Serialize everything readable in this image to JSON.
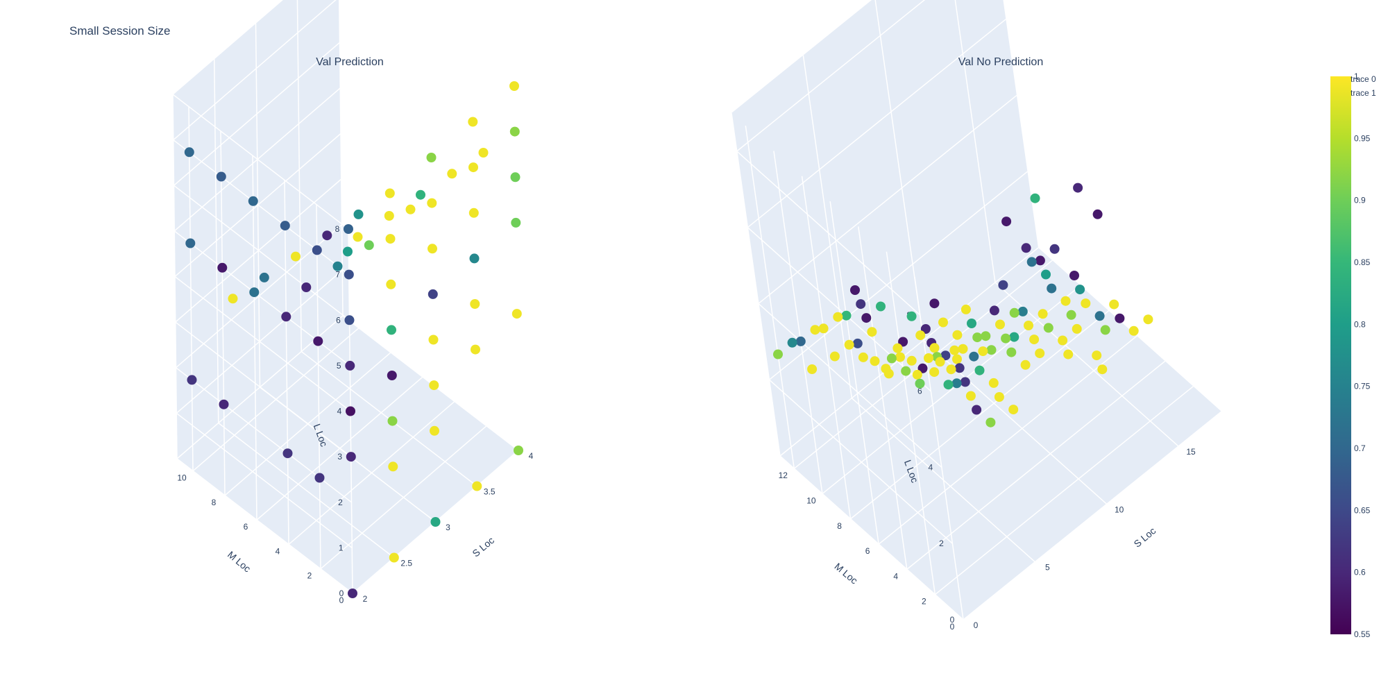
{
  "figure": {
    "title": "Small Session Size"
  },
  "legend": {
    "items": [
      "trace 0",
      "trace 1"
    ]
  },
  "colorbar": {
    "colorscale": "Viridis",
    "colors": [
      "#440154",
      "#482878",
      "#3e4989",
      "#31688e",
      "#26828e",
      "#1f9e89",
      "#35b779",
      "#6ece58",
      "#b5de2b",
      "#fde725"
    ],
    "range": [
      0.55,
      1
    ],
    "tick_labels": [
      "0.55",
      "0.6",
      "0.65",
      "0.7",
      "0.75",
      "0.8",
      "0.85",
      "0.9",
      "0.95",
      "1"
    ]
  },
  "chart_data": [
    {
      "type": "scatter3d",
      "title": "Val Prediction",
      "axes": {
        "x": {
          "label": "S Loc",
          "range": [
            2,
            4
          ],
          "tick_labels": [
            "2",
            "2.5",
            "3",
            "3.5",
            "4"
          ]
        },
        "y": {
          "label": "M Loc",
          "range": [
            0,
            11
          ],
          "tick_labels": [
            "0",
            "2",
            "4",
            "6",
            "8",
            "10"
          ]
        },
        "z": {
          "label": "L Loc",
          "range": [
            0,
            8
          ],
          "tick_labels": [
            "0",
            "1",
            "2",
            "3",
            "4",
            "5",
            "6",
            "7",
            "8"
          ]
        }
      },
      "points": [
        {
          "x": 2,
          "y": 0,
          "z": 8,
          "v": 0.69
        },
        {
          "x": 2,
          "y": 0,
          "z": 7,
          "v": 0.66
        },
        {
          "x": 2,
          "y": 0,
          "z": 6,
          "v": 0.66
        },
        {
          "x": 2,
          "y": 0,
          "z": 5,
          "v": 0.6
        },
        {
          "x": 2,
          "y": 0,
          "z": 4,
          "v": 0.57
        },
        {
          "x": 2,
          "y": 0,
          "z": 3,
          "v": 0.6
        },
        {
          "x": 2,
          "y": 0,
          "z": 0,
          "v": 0.6
        },
        {
          "x": 2,
          "y": 2,
          "z": 7,
          "v": 0.66
        },
        {
          "x": 2,
          "y": 4,
          "z": 7,
          "v": 0.68
        },
        {
          "x": 2,
          "y": 6,
          "z": 7,
          "v": 0.7
        },
        {
          "x": 2,
          "y": 8,
          "z": 7,
          "v": 0.68
        },
        {
          "x": 2,
          "y": 10,
          "z": 7,
          "v": 0.7
        },
        {
          "x": 2,
          "y": 2,
          "z": 5,
          "v": 0.58
        },
        {
          "x": 2,
          "y": 4,
          "z": 5,
          "v": 0.6
        },
        {
          "x": 2,
          "y": 6,
          "z": 5,
          "v": 0.72
        },
        {
          "x": 2,
          "y": 8,
          "z": 5,
          "v": 0.58
        },
        {
          "x": 2,
          "y": 10,
          "z": 5,
          "v": 0.7
        },
        {
          "x": 2,
          "y": 2,
          "z": 2,
          "v": 0.62
        },
        {
          "x": 2,
          "y": 4,
          "z": 2,
          "v": 0.62
        },
        {
          "x": 2,
          "y": 8,
          "z": 2,
          "v": 0.6
        },
        {
          "x": 2,
          "y": 10,
          "z": 2,
          "v": 0.62
        },
        {
          "x": 2.5,
          "y": 0,
          "z": 8,
          "v": 0.99
        },
        {
          "x": 2.5,
          "y": 0,
          "z": 7,
          "v": 0.99
        },
        {
          "x": 2.5,
          "y": 0,
          "z": 6,
          "v": 0.99
        },
        {
          "x": 2.5,
          "y": 0,
          "z": 5,
          "v": 0.84
        },
        {
          "x": 2.5,
          "y": 0,
          "z": 4,
          "v": 0.58
        },
        {
          "x": 2.5,
          "y": 0,
          "z": 3,
          "v": 0.92
        },
        {
          "x": 2.5,
          "y": 0,
          "z": 2,
          "v": 0.99
        },
        {
          "x": 2.5,
          "y": 0,
          "z": 0,
          "v": 0.99
        },
        {
          "x": 2.5,
          "y": 2,
          "z": 7,
          "v": 0.78
        },
        {
          "x": 2.5,
          "y": 4,
          "z": 6,
          "v": 0.6
        },
        {
          "x": 2.5,
          "y": 6,
          "z": 5,
          "v": 0.99
        },
        {
          "x": 2.5,
          "y": 8,
          "z": 4,
          "v": 0.72
        },
        {
          "x": 2.5,
          "y": 10,
          "z": 3,
          "v": 0.99
        },
        {
          "x": 3,
          "y": 0,
          "z": 8,
          "v": 0.92
        },
        {
          "x": 3,
          "y": 0,
          "z": 7,
          "v": 0.99
        },
        {
          "x": 3,
          "y": 0,
          "z": 6,
          "v": 0.99
        },
        {
          "x": 3,
          "y": 0,
          "z": 5,
          "v": 0.64
        },
        {
          "x": 3,
          "y": 0,
          "z": 4,
          "v": 0.99
        },
        {
          "x": 3,
          "y": 0,
          "z": 3,
          "v": 0.99
        },
        {
          "x": 3,
          "y": 0,
          "z": 2,
          "v": 0.99
        },
        {
          "x": 3,
          "y": 0,
          "z": 0,
          "v": 0.82
        },
        {
          "x": 3,
          "y": 4,
          "z": 5,
          "v": 0.9
        },
        {
          "x": 3,
          "y": 6,
          "z": 4,
          "v": 0.75
        },
        {
          "x": 3,
          "y": 8,
          "z": 3,
          "v": 0.6
        },
        {
          "x": 3.5,
          "y": 0,
          "z": 8,
          "v": 0.99
        },
        {
          "x": 3.5,
          "y": 0,
          "z": 7,
          "v": 0.99
        },
        {
          "x": 3.5,
          "y": 0,
          "z": 6,
          "v": 0.99
        },
        {
          "x": 3.5,
          "y": 0,
          "z": 5,
          "v": 0.76
        },
        {
          "x": 3.5,
          "y": 0,
          "z": 4,
          "v": 0.99
        },
        {
          "x": 3.5,
          "y": 0,
          "z": 3,
          "v": 0.99
        },
        {
          "x": 3.5,
          "y": 0,
          "z": 0,
          "v": 0.99
        },
        {
          "x": 3.5,
          "y": 4,
          "z": 5,
          "v": 0.99
        },
        {
          "x": 3.5,
          "y": 8,
          "z": 3,
          "v": 0.8
        },
        {
          "x": 4,
          "y": 0,
          "z": 8,
          "v": 0.99
        },
        {
          "x": 4,
          "y": 0,
          "z": 7,
          "v": 0.92
        },
        {
          "x": 4,
          "y": 0,
          "z": 6,
          "v": 0.9
        },
        {
          "x": 4,
          "y": 0,
          "z": 5,
          "v": 0.9
        },
        {
          "x": 4,
          "y": 0,
          "z": 3,
          "v": 0.99
        },
        {
          "x": 4,
          "y": 0,
          "z": 0,
          "v": 0.92
        },
        {
          "x": 4,
          "y": 2,
          "z": 6,
          "v": 0.99
        },
        {
          "x": 4,
          "y": 4,
          "z": 5,
          "v": 0.99
        },
        {
          "x": 4,
          "y": 6,
          "z": 4,
          "v": 0.84
        },
        {
          "x": 4,
          "y": 8,
          "z": 3,
          "v": 0.99
        },
        {
          "x": 4,
          "y": 10,
          "z": 2,
          "v": 0.99
        }
      ]
    },
    {
      "type": "scatter3d",
      "title": "Val No Prediction",
      "axes": {
        "x": {
          "label": "S Loc",
          "range": [
            0,
            18
          ],
          "tick_labels": [
            "0",
            "5",
            "10",
            "15"
          ]
        },
        "y": {
          "label": "M Loc",
          "range": [
            0,
            13
          ],
          "tick_labels": [
            "0",
            "2",
            "4",
            "6",
            "8",
            "10",
            "12"
          ]
        },
        "z": {
          "label": "L Loc",
          "range": [
            0,
            9
          ],
          "tick_labels": [
            "0",
            "2",
            "4",
            "6",
            "8"
          ]
        }
      },
      "points": [
        {
          "x": 1,
          "y": 0,
          "z": 8,
          "v": 0.58
        },
        {
          "x": 1,
          "y": 1,
          "z": 7,
          "v": 0.6
        },
        {
          "x": 1,
          "y": 2,
          "z": 7,
          "v": 0.84
        },
        {
          "x": 1,
          "y": 3,
          "z": 6,
          "v": 0.58
        },
        {
          "x": 2,
          "y": 0,
          "z": 6,
          "v": 0.62
        },
        {
          "x": 2,
          "y": 1,
          "z": 6,
          "v": 0.64
        },
        {
          "x": 2,
          "y": 2,
          "z": 6,
          "v": 0.6
        },
        {
          "x": 2,
          "y": 3,
          "z": 5,
          "v": 0.58
        },
        {
          "x": 3,
          "y": 0,
          "z": 6,
          "v": 0.72
        },
        {
          "x": 3,
          "y": 1,
          "z": 5,
          "v": 0.62
        },
        {
          "x": 3,
          "y": 2,
          "z": 5,
          "v": 0.99
        },
        {
          "x": 3,
          "y": 3,
          "z": 5,
          "v": 0.92
        },
        {
          "x": 4,
          "y": 0,
          "z": 5,
          "v": 0.99
        },
        {
          "x": 4,
          "y": 1,
          "z": 5,
          "v": 0.84
        },
        {
          "x": 4,
          "y": 2,
          "z": 4,
          "v": 0.99
        },
        {
          "x": 4,
          "y": 3,
          "z": 4,
          "v": 0.74
        },
        {
          "x": 5,
          "y": 0,
          "z": 4,
          "v": 0.99
        },
        {
          "x": 5,
          "y": 1,
          "z": 4,
          "v": 0.99
        },
        {
          "x": 5,
          "y": 2,
          "z": 3,
          "v": 0.92
        },
        {
          "x": 5,
          "y": 3,
          "z": 3,
          "v": 0.6
        },
        {
          "x": 0,
          "y": 5,
          "z": 7,
          "v": 0.58
        },
        {
          "x": 0,
          "y": 6,
          "z": 6,
          "v": 0.85
        },
        {
          "x": 1,
          "y": 6,
          "z": 6,
          "v": 0.62
        },
        {
          "x": 2,
          "y": 7,
          "z": 5,
          "v": 0.58
        },
        {
          "x": 3,
          "y": 7,
          "z": 5,
          "v": 0.84
        },
        {
          "x": 0,
          "y": 8,
          "z": 5,
          "v": 0.99
        },
        {
          "x": 1,
          "y": 8,
          "z": 5,
          "v": 0.99
        },
        {
          "x": 2,
          "y": 8,
          "z": 4,
          "v": 0.66
        },
        {
          "x": 3,
          "y": 8,
          "z": 4,
          "v": 0.99
        },
        {
          "x": 4,
          "y": 8,
          "z": 3,
          "v": 0.92
        },
        {
          "x": 0,
          "y": 10,
          "z": 4,
          "v": 0.7
        },
        {
          "x": 1,
          "y": 10,
          "z": 4,
          "v": 0.99
        },
        {
          "x": 2,
          "y": 10,
          "z": 3,
          "v": 0.99
        },
        {
          "x": 3,
          "y": 10,
          "z": 3,
          "v": 0.99
        },
        {
          "x": 0,
          "y": 12,
          "z": 3,
          "v": 0.92
        },
        {
          "x": 1,
          "y": 12,
          "z": 3,
          "v": 0.76
        },
        {
          "x": 2,
          "y": 12,
          "z": 2,
          "v": 0.99
        },
        {
          "x": 6,
          "y": 4,
          "z": 5,
          "v": 0.99
        },
        {
          "x": 6,
          "y": 5,
          "z": 4,
          "v": 0.99
        },
        {
          "x": 6,
          "y": 6,
          "z": 4,
          "v": 0.99
        },
        {
          "x": 6,
          "y": 7,
          "z": 3,
          "v": 0.99
        },
        {
          "x": 6,
          "y": 8,
          "z": 3,
          "v": 0.99
        },
        {
          "x": 6,
          "y": 9,
          "z": 2,
          "v": 0.99
        },
        {
          "x": 6,
          "y": 10,
          "z": 2,
          "v": 0.99
        },
        {
          "x": 6,
          "y": 11,
          "z": 1,
          "v": 0.99
        },
        {
          "x": 6,
          "y": 12,
          "z": 1,
          "v": 0.99
        },
        {
          "x": 7,
          "y": 4,
          "z": 4,
          "v": 0.92
        },
        {
          "x": 7,
          "y": 6,
          "z": 3,
          "v": 0.99
        },
        {
          "x": 7,
          "y": 8,
          "z": 2,
          "v": 0.99
        },
        {
          "x": 7,
          "y": 10,
          "z": 1,
          "v": 0.99
        },
        {
          "x": 8,
          "y": 4,
          "z": 4,
          "v": 0.99
        },
        {
          "x": 8,
          "y": 6,
          "z": 3,
          "v": 0.92
        },
        {
          "x": 8,
          "y": 8,
          "z": 2,
          "v": 0.99
        },
        {
          "x": 9,
          "y": 3,
          "z": 4,
          "v": 0.99
        },
        {
          "x": 9,
          "y": 5,
          "z": 3,
          "v": 0.92
        },
        {
          "x": 9,
          "y": 7,
          "z": 2,
          "v": 0.99
        },
        {
          "x": 10,
          "y": 4,
          "z": 3,
          "v": 0.99
        },
        {
          "x": 10,
          "y": 6,
          "z": 2,
          "v": 0.92
        },
        {
          "x": 11,
          "y": 3,
          "z": 3,
          "v": 0.99
        },
        {
          "x": 11,
          "y": 5,
          "z": 2,
          "v": 0.99
        },
        {
          "x": 12,
          "y": 4,
          "z": 2,
          "v": 0.99
        },
        {
          "x": 13,
          "y": 3,
          "z": 2,
          "v": 0.99
        },
        {
          "x": 14,
          "y": 4,
          "z": 1,
          "v": 0.99
        },
        {
          "x": 9,
          "y": 1,
          "z": 6,
          "v": 0.8
        },
        {
          "x": 10,
          "y": 1,
          "z": 5,
          "v": 0.99
        },
        {
          "x": 10,
          "y": 2,
          "z": 5,
          "v": 0.72
        },
        {
          "x": 11,
          "y": 1,
          "z": 5,
          "v": 0.78
        },
        {
          "x": 11,
          "y": 2,
          "z": 4,
          "v": 0.92
        },
        {
          "x": 12,
          "y": 1,
          "z": 4,
          "v": 0.72
        },
        {
          "x": 12,
          "y": 2,
          "z": 4,
          "v": 0.99
        },
        {
          "x": 13,
          "y": 1,
          "z": 4,
          "v": 0.99
        },
        {
          "x": 13,
          "y": 2,
          "z": 3,
          "v": 0.92
        },
        {
          "x": 14,
          "y": 1,
          "z": 3,
          "v": 0.99
        },
        {
          "x": 14,
          "y": 2,
          "z": 3,
          "v": 0.58
        },
        {
          "x": 15,
          "y": 1,
          "z": 3,
          "v": 0.99
        },
        {
          "x": 8,
          "y": 0,
          "z": 7,
          "v": 0.58
        },
        {
          "x": 8,
          "y": 1,
          "z": 7,
          "v": 0.6
        },
        {
          "x": 9,
          "y": 0,
          "z": 7,
          "v": 0.62
        },
        {
          "x": 9,
          "y": 2,
          "z": 6,
          "v": 0.72
        },
        {
          "x": 10,
          "y": 0,
          "z": 6,
          "v": 0.58
        },
        {
          "x": 7,
          "y": 2,
          "z": 6,
          "v": 0.64
        },
        {
          "x": 7,
          "y": 3,
          "z": 5,
          "v": 0.6
        },
        {
          "x": 8,
          "y": 2,
          "z": 5,
          "v": 0.74
        },
        {
          "x": 8,
          "y": 3,
          "z": 4,
          "v": 0.82
        },
        {
          "x": 5,
          "y": 4,
          "z": 4,
          "v": 0.99
        },
        {
          "x": 5,
          "y": 5,
          "z": 3,
          "v": 0.84
        },
        {
          "x": 4,
          "y": 5,
          "z": 4,
          "v": 0.99
        },
        {
          "x": 4,
          "y": 6,
          "z": 3,
          "v": 0.9
        },
        {
          "x": 3,
          "y": 6,
          "z": 4,
          "v": 0.99
        },
        {
          "x": 2,
          "y": 6,
          "z": 4,
          "v": 0.99
        },
        {
          "x": 7,
          "y": 1,
          "z": 8,
          "v": 0.58
        },
        {
          "x": 9,
          "y": 1,
          "z": 8,
          "v": 0.84
        },
        {
          "x": 11,
          "y": 0,
          "z": 8,
          "v": 0.6
        },
        {
          "x": 12,
          "y": 0,
          "z": 7,
          "v": 0.58
        },
        {
          "x": 10,
          "y": 3,
          "z": 4,
          "v": 0.99
        },
        {
          "x": 9,
          "y": 4,
          "z": 4,
          "v": 0.92
        },
        {
          "x": 11,
          "y": 4,
          "z": 3,
          "v": 0.92
        },
        {
          "x": 12,
          "y": 3,
          "z": 3,
          "v": 0.99
        },
        {
          "x": 5,
          "y": 6,
          "z": 3,
          "v": 0.99
        },
        {
          "x": 4,
          "y": 7,
          "z": 3,
          "v": 0.92
        },
        {
          "x": 3,
          "y": 9,
          "z": 3,
          "v": 0.99
        },
        {
          "x": 8,
          "y": 5,
          "z": 3,
          "v": 0.92
        },
        {
          "x": 10,
          "y": 5,
          "z": 2,
          "v": 0.99
        },
        {
          "x": 7,
          "y": 5,
          "z": 4,
          "v": 0.82
        }
      ]
    }
  ]
}
